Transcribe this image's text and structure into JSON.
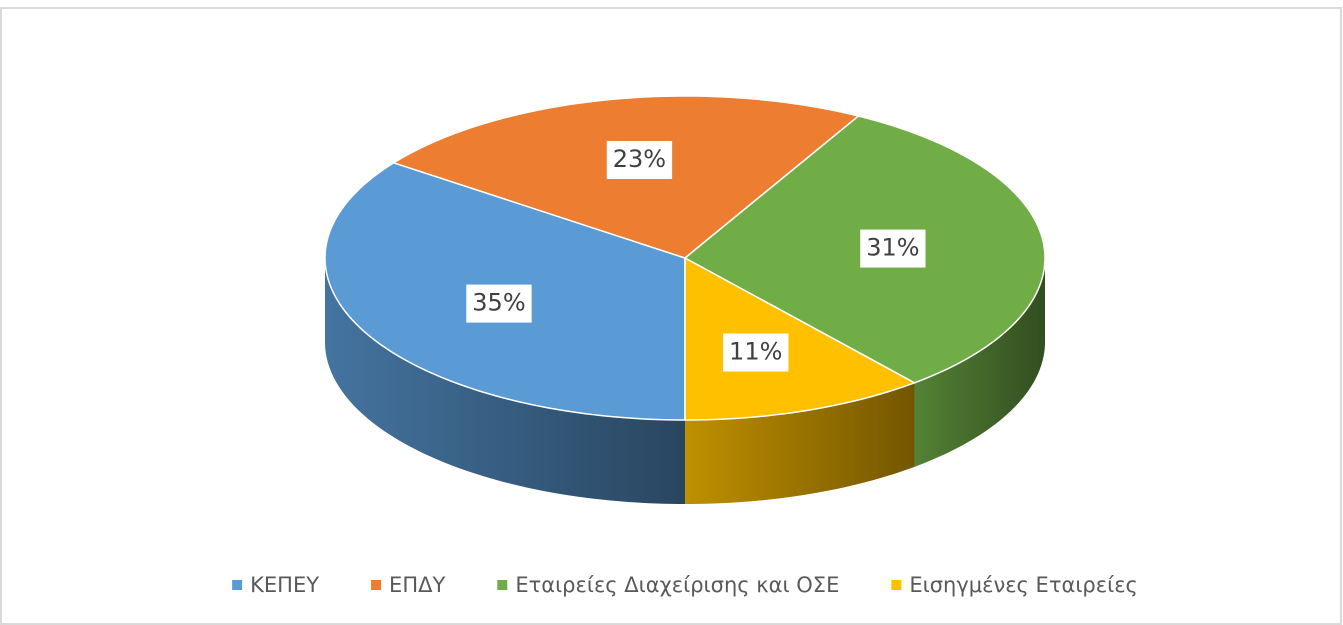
{
  "chart_data": {
    "type": "pie",
    "categories": [
      "ΚΕΠΕΥ",
      "ΕΠΔΥ",
      "Εταιρείες Διαχείρισης και ΟΣΕ",
      "Εισηγμένες Εταιρείες"
    ],
    "values": [
      35,
      23,
      31,
      11
    ],
    "value_labels": [
      "35%",
      "23%",
      "31%",
      "11%"
    ],
    "colors": [
      "#5b9bd5",
      "#ed7d31",
      "#70ad47",
      "#ffc000"
    ],
    "legend": "bottom"
  }
}
